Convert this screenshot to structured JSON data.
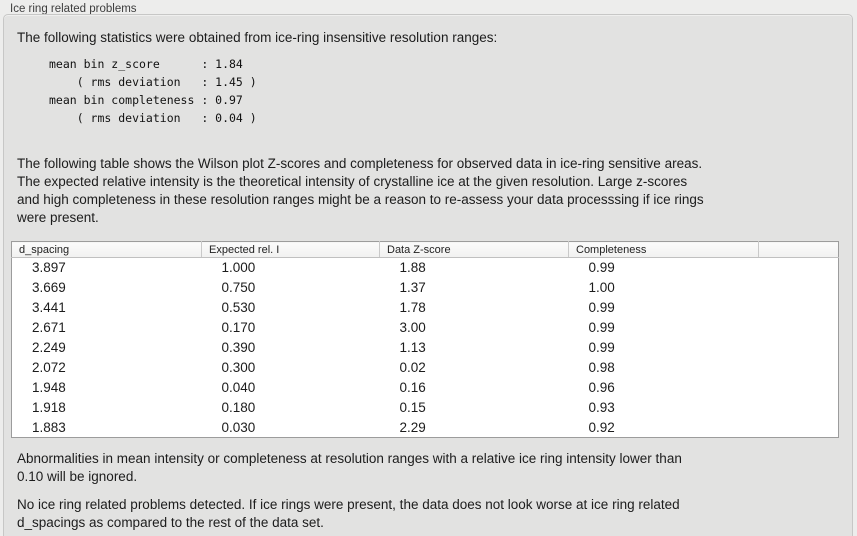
{
  "panel": {
    "group_label": "Ice ring related problems"
  },
  "stats": {
    "intro": "The following statistics were obtained from ice-ring insensitive resolution ranges:",
    "block": "mean bin z_score      : 1.84\n    ( rms deviation   : 1.45 )\nmean bin completeness : 0.97\n    ( rms deviation   : 0.04 )",
    "values": {
      "mean_bin_z_score": "1.84",
      "z_score_rms_deviation": "1.45",
      "mean_bin_completeness": "0.97",
      "completeness_rms_deviation": "0.04"
    }
  },
  "table_intro": "The following table shows the Wilson plot Z-scores and completeness for observed data in ice-ring sensitive areas.\nThe expected relative intensity is the theoretical intensity of crystalline ice at the given resolution. Large z-scores\nand high completeness in these resolution ranges might be a reason to re-assess your data processsing if ice rings\nwere present.",
  "table": {
    "columns": [
      "d_spacing",
      "Expected rel. I",
      "Data Z-score",
      "Completeness",
      ""
    ],
    "rows": [
      [
        "3.897",
        "1.000",
        "1.88",
        "0.99"
      ],
      [
        "3.669",
        "0.750",
        "1.37",
        "1.00"
      ],
      [
        "3.441",
        "0.530",
        "1.78",
        "0.99"
      ],
      [
        "2.671",
        "0.170",
        "3.00",
        "0.99"
      ],
      [
        "2.249",
        "0.390",
        "1.13",
        "0.99"
      ],
      [
        "2.072",
        "0.300",
        "0.02",
        "0.98"
      ],
      [
        "1.948",
        "0.040",
        "0.16",
        "0.96"
      ],
      [
        "1.918",
        "0.180",
        "0.15",
        "0.93"
      ],
      [
        "1.883",
        "0.030",
        "2.29",
        "0.92"
      ]
    ]
  },
  "notes": {
    "ignore_note": "Abnormalities in mean intensity or completeness at resolution ranges with a relative ice ring intensity lower than\n0.10 will be ignored.",
    "conclusion": "No ice ring related problems detected. If ice rings were present, the data does not look worse at ice ring related\nd_spacings as compared to the rest of the data set."
  },
  "colors": {
    "page_background": "#ededec",
    "group_box_background": "#e2e2e1",
    "group_box_border": "#c7c7c6",
    "table_background": "#ffffff",
    "table_border": "#9c9c9c",
    "text": "#1c1c1c"
  }
}
